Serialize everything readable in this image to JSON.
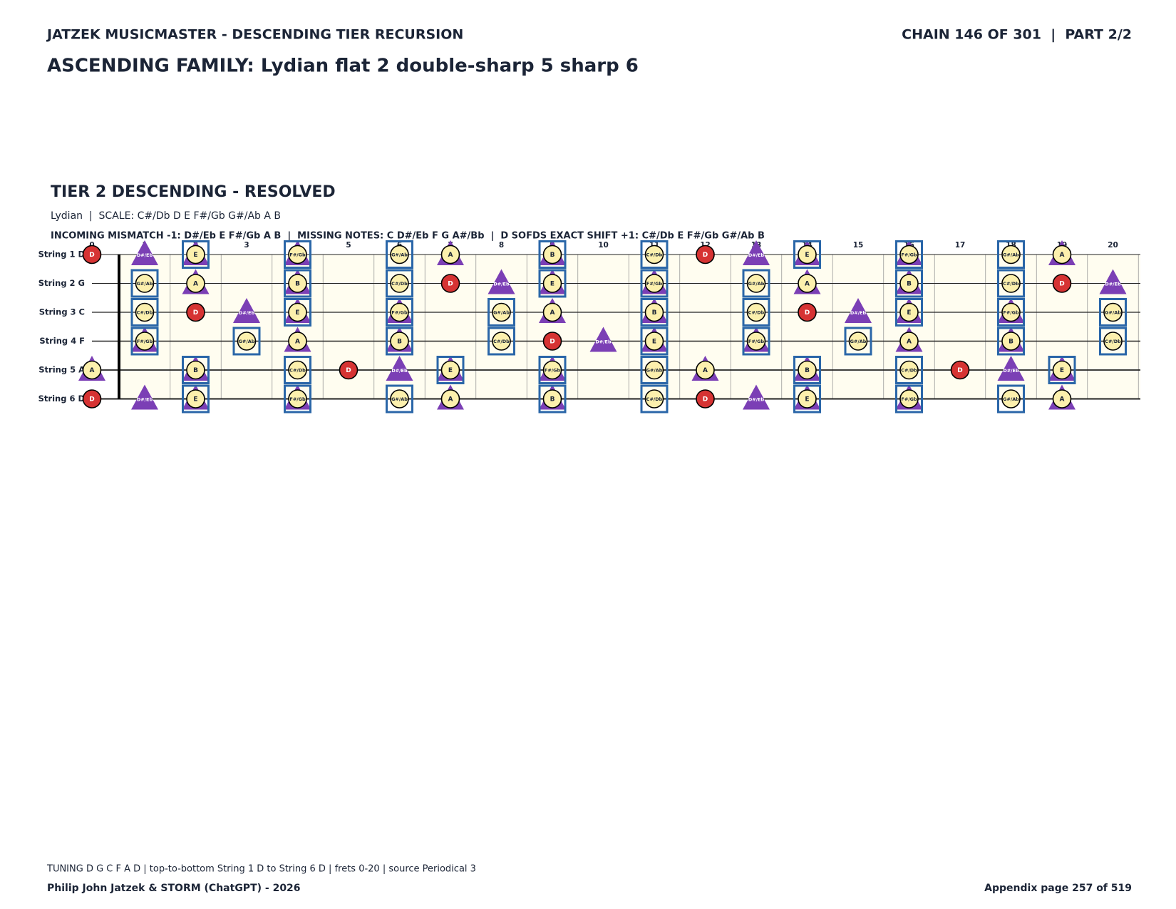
{
  "header": {
    "series": "JATZEK MUSICMASTER - DESCENDING TIER RECURSION",
    "chain": "CHAIN 146 OF 301  |  PART 2/2",
    "title": "ASCENDING FAMILY: Lydian flat 2 double-sharp 5 sharp 6"
  },
  "section": {
    "title": "TIER 2 DESCENDING - RESOLVED",
    "subtitle": "Lydian  |  SCALE: C#/Db D E F#/Gb G#/Ab A B",
    "notes_line": "INCOMING MISMATCH -1: D#/Eb E F#/Gb A B  |  MISSING NOTES: C D#/Eb F G A#/Bb  |  D SOFDS EXACT SHIFT +1: C#/Db E F#/Gb G#/Ab B"
  },
  "fretboard": {
    "colors": {
      "board": "#fffdf0",
      "root": "#d63333",
      "tone": "#fcf0ad",
      "triangle": "#7b3fb5",
      "box": "#2a66a8"
    },
    "frets": [
      0,
      1,
      2,
      3,
      4,
      5,
      6,
      7,
      8,
      9,
      10,
      11,
      12,
      13,
      14,
      15,
      16,
      17,
      18,
      19,
      20
    ],
    "strings": [
      {
        "label": "String 1 D",
        "cells": [
          {
            "note": "D",
            "circle": "root"
          },
          {
            "note": "D#/Eb",
            "triangle": true
          },
          {
            "note": "E",
            "circle": "tone",
            "triangle": true,
            "box": true
          },
          null,
          {
            "note": "F#/Gb",
            "circle": "tone",
            "triangle": true,
            "box": true
          },
          null,
          {
            "note": "G#/Ab",
            "circle": "tone",
            "box": true
          },
          {
            "note": "A",
            "circle": "tone",
            "triangle": true
          },
          null,
          {
            "note": "B",
            "circle": "tone",
            "triangle": true,
            "box": true
          },
          null,
          {
            "note": "C#/Db",
            "circle": "tone",
            "box": true
          },
          {
            "note": "D",
            "circle": "root"
          },
          {
            "note": "D#/Eb",
            "triangle": true
          },
          {
            "note": "E",
            "circle": "tone",
            "triangle": true,
            "box": true
          },
          null,
          {
            "note": "F#/Gb",
            "circle": "tone",
            "triangle": true,
            "box": true
          },
          null,
          {
            "note": "G#/Ab",
            "circle": "tone",
            "box": true
          },
          {
            "note": "A",
            "circle": "tone",
            "triangle": true
          },
          null
        ]
      },
      {
        "label": "String 2 G",
        "cells": [
          null,
          {
            "note": "G#/Ab",
            "circle": "tone",
            "box": true
          },
          {
            "note": "A",
            "circle": "tone",
            "triangle": true
          },
          null,
          {
            "note": "B",
            "circle": "tone",
            "triangle": true,
            "box": true
          },
          null,
          {
            "note": "C#/Db",
            "circle": "tone",
            "box": true
          },
          {
            "note": "D",
            "circle": "root"
          },
          {
            "note": "D#/Eb",
            "triangle": true
          },
          {
            "note": "E",
            "circle": "tone",
            "triangle": true,
            "box": true
          },
          null,
          {
            "note": "F#/Gb",
            "circle": "tone",
            "triangle": true,
            "box": true
          },
          null,
          {
            "note": "G#/Ab",
            "circle": "tone",
            "box": true
          },
          {
            "note": "A",
            "circle": "tone",
            "triangle": true
          },
          null,
          {
            "note": "B",
            "circle": "tone",
            "triangle": true,
            "box": true
          },
          null,
          {
            "note": "C#/Db",
            "circle": "tone",
            "box": true
          },
          {
            "note": "D",
            "circle": "root"
          },
          {
            "note": "D#/Eb",
            "triangle": true
          }
        ]
      },
      {
        "label": "String 3 C",
        "cells": [
          null,
          {
            "note": "C#/Db",
            "circle": "tone",
            "box": true
          },
          {
            "note": "D",
            "circle": "root"
          },
          {
            "note": "D#/Eb",
            "triangle": true
          },
          {
            "note": "E",
            "circle": "tone",
            "triangle": true,
            "box": true
          },
          null,
          {
            "note": "F#/Gb",
            "circle": "tone",
            "triangle": true,
            "box": true
          },
          null,
          {
            "note": "G#/Ab",
            "circle": "tone",
            "box": true
          },
          {
            "note": "A",
            "circle": "tone",
            "triangle": true
          },
          null,
          {
            "note": "B",
            "circle": "tone",
            "triangle": true,
            "box": true
          },
          null,
          {
            "note": "C#/Db",
            "circle": "tone",
            "box": true
          },
          {
            "note": "D",
            "circle": "root"
          },
          {
            "note": "D#/Eb",
            "triangle": true
          },
          {
            "note": "E",
            "circle": "tone",
            "triangle": true,
            "box": true
          },
          null,
          {
            "note": "F#/Gb",
            "circle": "tone",
            "triangle": true,
            "box": true
          },
          null,
          {
            "note": "G#/Ab",
            "circle": "tone",
            "box": true
          }
        ]
      },
      {
        "label": "String 4 F",
        "cells": [
          null,
          {
            "note": "F#/Gb",
            "circle": "tone",
            "triangle": true,
            "box": true
          },
          null,
          {
            "note": "G#/Ab",
            "circle": "tone",
            "box": true
          },
          {
            "note": "A",
            "circle": "tone",
            "triangle": true
          },
          null,
          {
            "note": "B",
            "circle": "tone",
            "triangle": true,
            "box": true
          },
          null,
          {
            "note": "C#/Db",
            "circle": "tone",
            "box": true
          },
          {
            "note": "D",
            "circle": "root"
          },
          {
            "note": "D#/Eb",
            "triangle": true
          },
          {
            "note": "E",
            "circle": "tone",
            "triangle": true,
            "box": true
          },
          null,
          {
            "note": "F#/Gb",
            "circle": "tone",
            "triangle": true,
            "box": true
          },
          null,
          {
            "note": "G#/Ab",
            "circle": "tone",
            "box": true
          },
          {
            "note": "A",
            "circle": "tone",
            "triangle": true
          },
          null,
          {
            "note": "B",
            "circle": "tone",
            "triangle": true,
            "box": true
          },
          null,
          {
            "note": "C#/Db",
            "circle": "tone",
            "box": true
          }
        ]
      },
      {
        "label": "String 5 A",
        "cells": [
          {
            "note": "A",
            "circle": "tone",
            "triangle": true
          },
          null,
          {
            "note": "B",
            "circle": "tone",
            "triangle": true,
            "box": true
          },
          null,
          {
            "note": "C#/Db",
            "circle": "tone",
            "box": true
          },
          {
            "note": "D",
            "circle": "root"
          },
          {
            "note": "D#/Eb",
            "triangle": true
          },
          {
            "note": "E",
            "circle": "tone",
            "triangle": true,
            "box": true
          },
          null,
          {
            "note": "F#/Gb",
            "circle": "tone",
            "triangle": true,
            "box": true
          },
          null,
          {
            "note": "G#/Ab",
            "circle": "tone",
            "box": true
          },
          {
            "note": "A",
            "circle": "tone",
            "triangle": true
          },
          null,
          {
            "note": "B",
            "circle": "tone",
            "triangle": true,
            "box": true
          },
          null,
          {
            "note": "C#/Db",
            "circle": "tone",
            "box": true
          },
          {
            "note": "D",
            "circle": "root"
          },
          {
            "note": "D#/Eb",
            "triangle": true
          },
          {
            "note": "E",
            "circle": "tone",
            "triangle": true,
            "box": true
          },
          null
        ]
      },
      {
        "label": "String 6 D",
        "cells": [
          {
            "note": "D",
            "circle": "root"
          },
          {
            "note": "D#/Eb",
            "triangle": true
          },
          {
            "note": "E",
            "circle": "tone",
            "triangle": true,
            "box": true
          },
          null,
          {
            "note": "F#/Gb",
            "circle": "tone",
            "triangle": true,
            "box": true
          },
          null,
          {
            "note": "G#/Ab",
            "circle": "tone",
            "box": true
          },
          {
            "note": "A",
            "circle": "tone",
            "triangle": true
          },
          null,
          {
            "note": "B",
            "circle": "tone",
            "triangle": true,
            "box": true
          },
          null,
          {
            "note": "C#/Db",
            "circle": "tone",
            "box": true
          },
          {
            "note": "D",
            "circle": "root"
          },
          {
            "note": "D#/Eb",
            "triangle": true
          },
          {
            "note": "E",
            "circle": "tone",
            "triangle": true,
            "box": true
          },
          null,
          {
            "note": "F#/Gb",
            "circle": "tone",
            "triangle": true,
            "box": true
          },
          null,
          {
            "note": "G#/Ab",
            "circle": "tone",
            "box": true
          },
          {
            "note": "A",
            "circle": "tone",
            "triangle": true
          },
          null
        ]
      }
    ]
  },
  "footer": {
    "tuning": "TUNING D G C F A D | top-to-bottom String 1 D to String 6 D | frets 0-20 | source Periodical 3",
    "credit": "Philip John Jatzek & STORM (ChatGPT) - 2026",
    "page": "Appendix page 257 of 519"
  }
}
